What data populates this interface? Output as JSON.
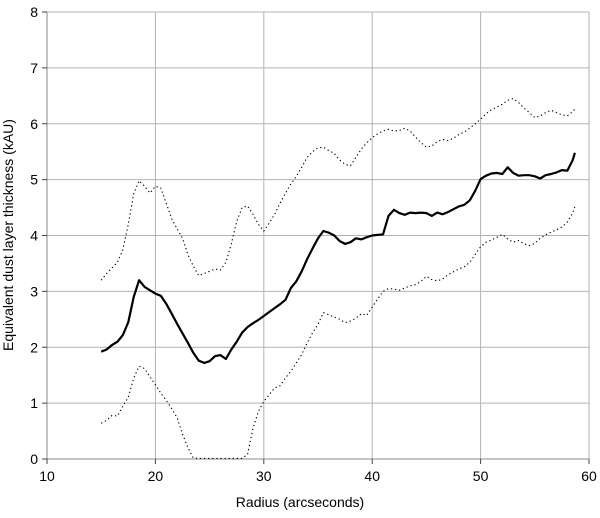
{
  "chart_data": {
    "type": "line",
    "title": "",
    "xlabel": "Radius (arcseconds)",
    "ylabel": "Equivalent dust layer thickness (kAU)",
    "xlim": [
      10,
      60
    ],
    "ylim": [
      0,
      8
    ],
    "x_ticks": [
      10,
      20,
      30,
      40,
      50,
      60
    ],
    "y_ticks": [
      0,
      1,
      2,
      3,
      4,
      5,
      6,
      7,
      8
    ],
    "grid": true,
    "legend_position": "none",
    "colors": {
      "line": "#000000",
      "grid": "#b3b3b3",
      "axis": "#888888",
      "background": "#ffffff"
    },
    "x": [
      15,
      15.5,
      16,
      16.5,
      17,
      17.5,
      18,
      18.5,
      19,
      19.5,
      20,
      20.5,
      21,
      21.5,
      22,
      22.5,
      23,
      23.5,
      24,
      24.5,
      25,
      25.5,
      26,
      26.5,
      27,
      27.5,
      28,
      28.5,
      29,
      29.5,
      30,
      30.5,
      31,
      31.5,
      32,
      32.5,
      33,
      33.5,
      34,
      34.5,
      35,
      35.5,
      36,
      36.5,
      37,
      37.5,
      38,
      38.5,
      39,
      39.5,
      40,
      40.5,
      41,
      41.5,
      42,
      42.5,
      43,
      43.5,
      44,
      44.5,
      45,
      45.5,
      46,
      46.5,
      47,
      47.5,
      48,
      48.5,
      49,
      49.5,
      50,
      50.5,
      51,
      51.5,
      52,
      52.5,
      53,
      53.5,
      54,
      54.5,
      55,
      55.5,
      56,
      56.5,
      57,
      57.5,
      58,
      58.5,
      58.7
    ],
    "series": [
      {
        "name": "upper envelope",
        "style": "dotted",
        "width": 1.1,
        "values": [
          3.2,
          3.32,
          3.42,
          3.52,
          3.75,
          4.2,
          4.75,
          4.98,
          4.88,
          4.76,
          4.88,
          4.85,
          4.58,
          4.3,
          4.12,
          3.95,
          3.66,
          3.45,
          3.28,
          3.32,
          3.36,
          3.4,
          3.38,
          3.52,
          3.85,
          4.25,
          4.5,
          4.53,
          4.38,
          4.2,
          4.08,
          4.22,
          4.38,
          4.58,
          4.76,
          4.92,
          5.06,
          5.22,
          5.4,
          5.5,
          5.57,
          5.58,
          5.52,
          5.47,
          5.35,
          5.27,
          5.25,
          5.4,
          5.55,
          5.66,
          5.75,
          5.82,
          5.87,
          5.9,
          5.87,
          5.88,
          5.92,
          5.87,
          5.76,
          5.66,
          5.58,
          5.6,
          5.68,
          5.72,
          5.7,
          5.74,
          5.81,
          5.85,
          5.92,
          6.0,
          6.08,
          6.18,
          6.25,
          6.3,
          6.35,
          6.42,
          6.45,
          6.38,
          6.28,
          6.2,
          6.11,
          6.14,
          6.2,
          6.24,
          6.2,
          6.16,
          6.14,
          6.22,
          6.26
        ]
      },
      {
        "name": "equivalent dust layer thickness",
        "style": "solid",
        "width": 2.2,
        "values": [
          1.92,
          1.96,
          2.04,
          2.1,
          2.22,
          2.45,
          2.9,
          3.2,
          3.08,
          3.02,
          2.96,
          2.92,
          2.78,
          2.6,
          2.42,
          2.25,
          2.08,
          1.9,
          1.76,
          1.72,
          1.75,
          1.84,
          1.86,
          1.79,
          1.96,
          2.1,
          2.26,
          2.36,
          2.43,
          2.49,
          2.56,
          2.63,
          2.7,
          2.77,
          2.85,
          3.06,
          3.18,
          3.36,
          3.58,
          3.77,
          3.95,
          4.08,
          4.05,
          4.0,
          3.9,
          3.85,
          3.88,
          3.95,
          3.93,
          3.97,
          4.0,
          4.01,
          4.02,
          4.35,
          4.46,
          4.4,
          4.37,
          4.41,
          4.4,
          4.41,
          4.4,
          4.35,
          4.41,
          4.38,
          4.42,
          4.47,
          4.52,
          4.55,
          4.63,
          4.8,
          5.01,
          5.07,
          5.11,
          5.12,
          5.1,
          5.22,
          5.12,
          5.07,
          5.08,
          5.08,
          5.06,
          5.02,
          5.08,
          5.1,
          5.13,
          5.17,
          5.16,
          5.35,
          5.48
        ]
      },
      {
        "name": "lower envelope",
        "style": "dotted",
        "width": 1.1,
        "values": [
          0.64,
          0.69,
          0.78,
          0.77,
          0.95,
          1.1,
          1.45,
          1.66,
          1.62,
          1.47,
          1.33,
          1.18,
          1.05,
          0.9,
          0.74,
          0.45,
          0.2,
          0.02,
          0.01,
          0.01,
          0.01,
          0.01,
          0.01,
          0.01,
          0.01,
          0.01,
          0.01,
          0.08,
          0.55,
          0.85,
          1.03,
          1.15,
          1.27,
          1.31,
          1.45,
          1.57,
          1.72,
          1.87,
          2.08,
          2.26,
          2.41,
          2.62,
          2.58,
          2.54,
          2.5,
          2.44,
          2.47,
          2.52,
          2.6,
          2.57,
          2.72,
          2.86,
          3.0,
          3.05,
          3.04,
          3.02,
          3.06,
          3.1,
          3.12,
          3.18,
          3.27,
          3.21,
          3.19,
          3.22,
          3.3,
          3.35,
          3.4,
          3.44,
          3.52,
          3.66,
          3.8,
          3.88,
          3.92,
          3.97,
          4.02,
          3.94,
          3.88,
          3.91,
          3.85,
          3.82,
          3.86,
          3.95,
          4.01,
          4.06,
          4.1,
          4.15,
          4.24,
          4.4,
          4.52
        ]
      }
    ]
  }
}
